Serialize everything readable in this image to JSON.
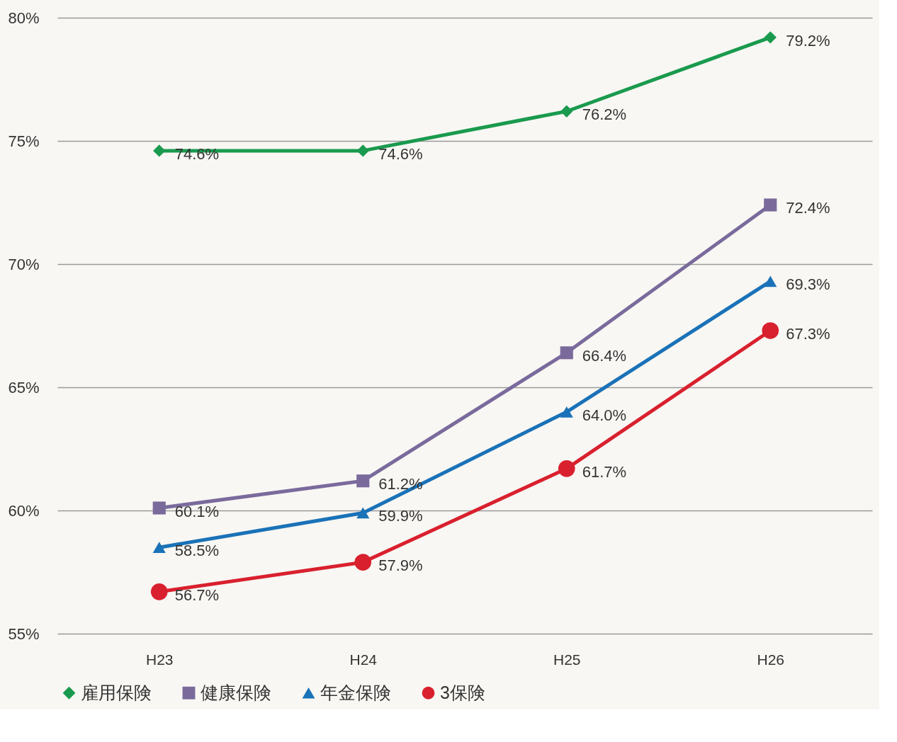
{
  "chart_data": {
    "type": "line",
    "categories": [
      "H23",
      "H24",
      "H25",
      "H26"
    ],
    "series": [
      {
        "name": "雇用保険",
        "color": "#1a9a4e",
        "marker": "diamond",
        "values": [
          74.6,
          74.6,
          76.2,
          79.2
        ],
        "value_labels": [
          "74.6%",
          "74.6%",
          "76.2%",
          "79.2%"
        ]
      },
      {
        "name": "健康保険",
        "color": "#7a6a9c",
        "marker": "square",
        "values": [
          60.1,
          61.2,
          66.4,
          72.4
        ],
        "value_labels": [
          "60.1%",
          "61.2%",
          "66.4%",
          "72.4%"
        ]
      },
      {
        "name": "年金保険",
        "color": "#1a72b8",
        "marker": "triangle",
        "values": [
          58.5,
          59.9,
          64.0,
          69.3
        ],
        "value_labels": [
          "58.5%",
          "59.9%",
          "64.0%",
          "69.3%"
        ]
      },
      {
        "name": "3保険",
        "color": "#d9202e",
        "marker": "circle",
        "values": [
          56.7,
          57.9,
          61.7,
          67.3
        ],
        "value_labels": [
          "56.7%",
          "57.9%",
          "61.7%",
          "67.3%"
        ]
      }
    ],
    "ylim": [
      55,
      80
    ],
    "yticks": [
      {
        "value": 55,
        "label": "55%"
      },
      {
        "value": 60,
        "label": "60%"
      },
      {
        "value": 65,
        "label": "65%"
      },
      {
        "value": 70,
        "label": "70%"
      },
      {
        "value": 75,
        "label": "75%"
      },
      {
        "value": 80,
        "label": "80%"
      }
    ],
    "grid": "y",
    "legend": "bottom",
    "line_style": "solid"
  }
}
